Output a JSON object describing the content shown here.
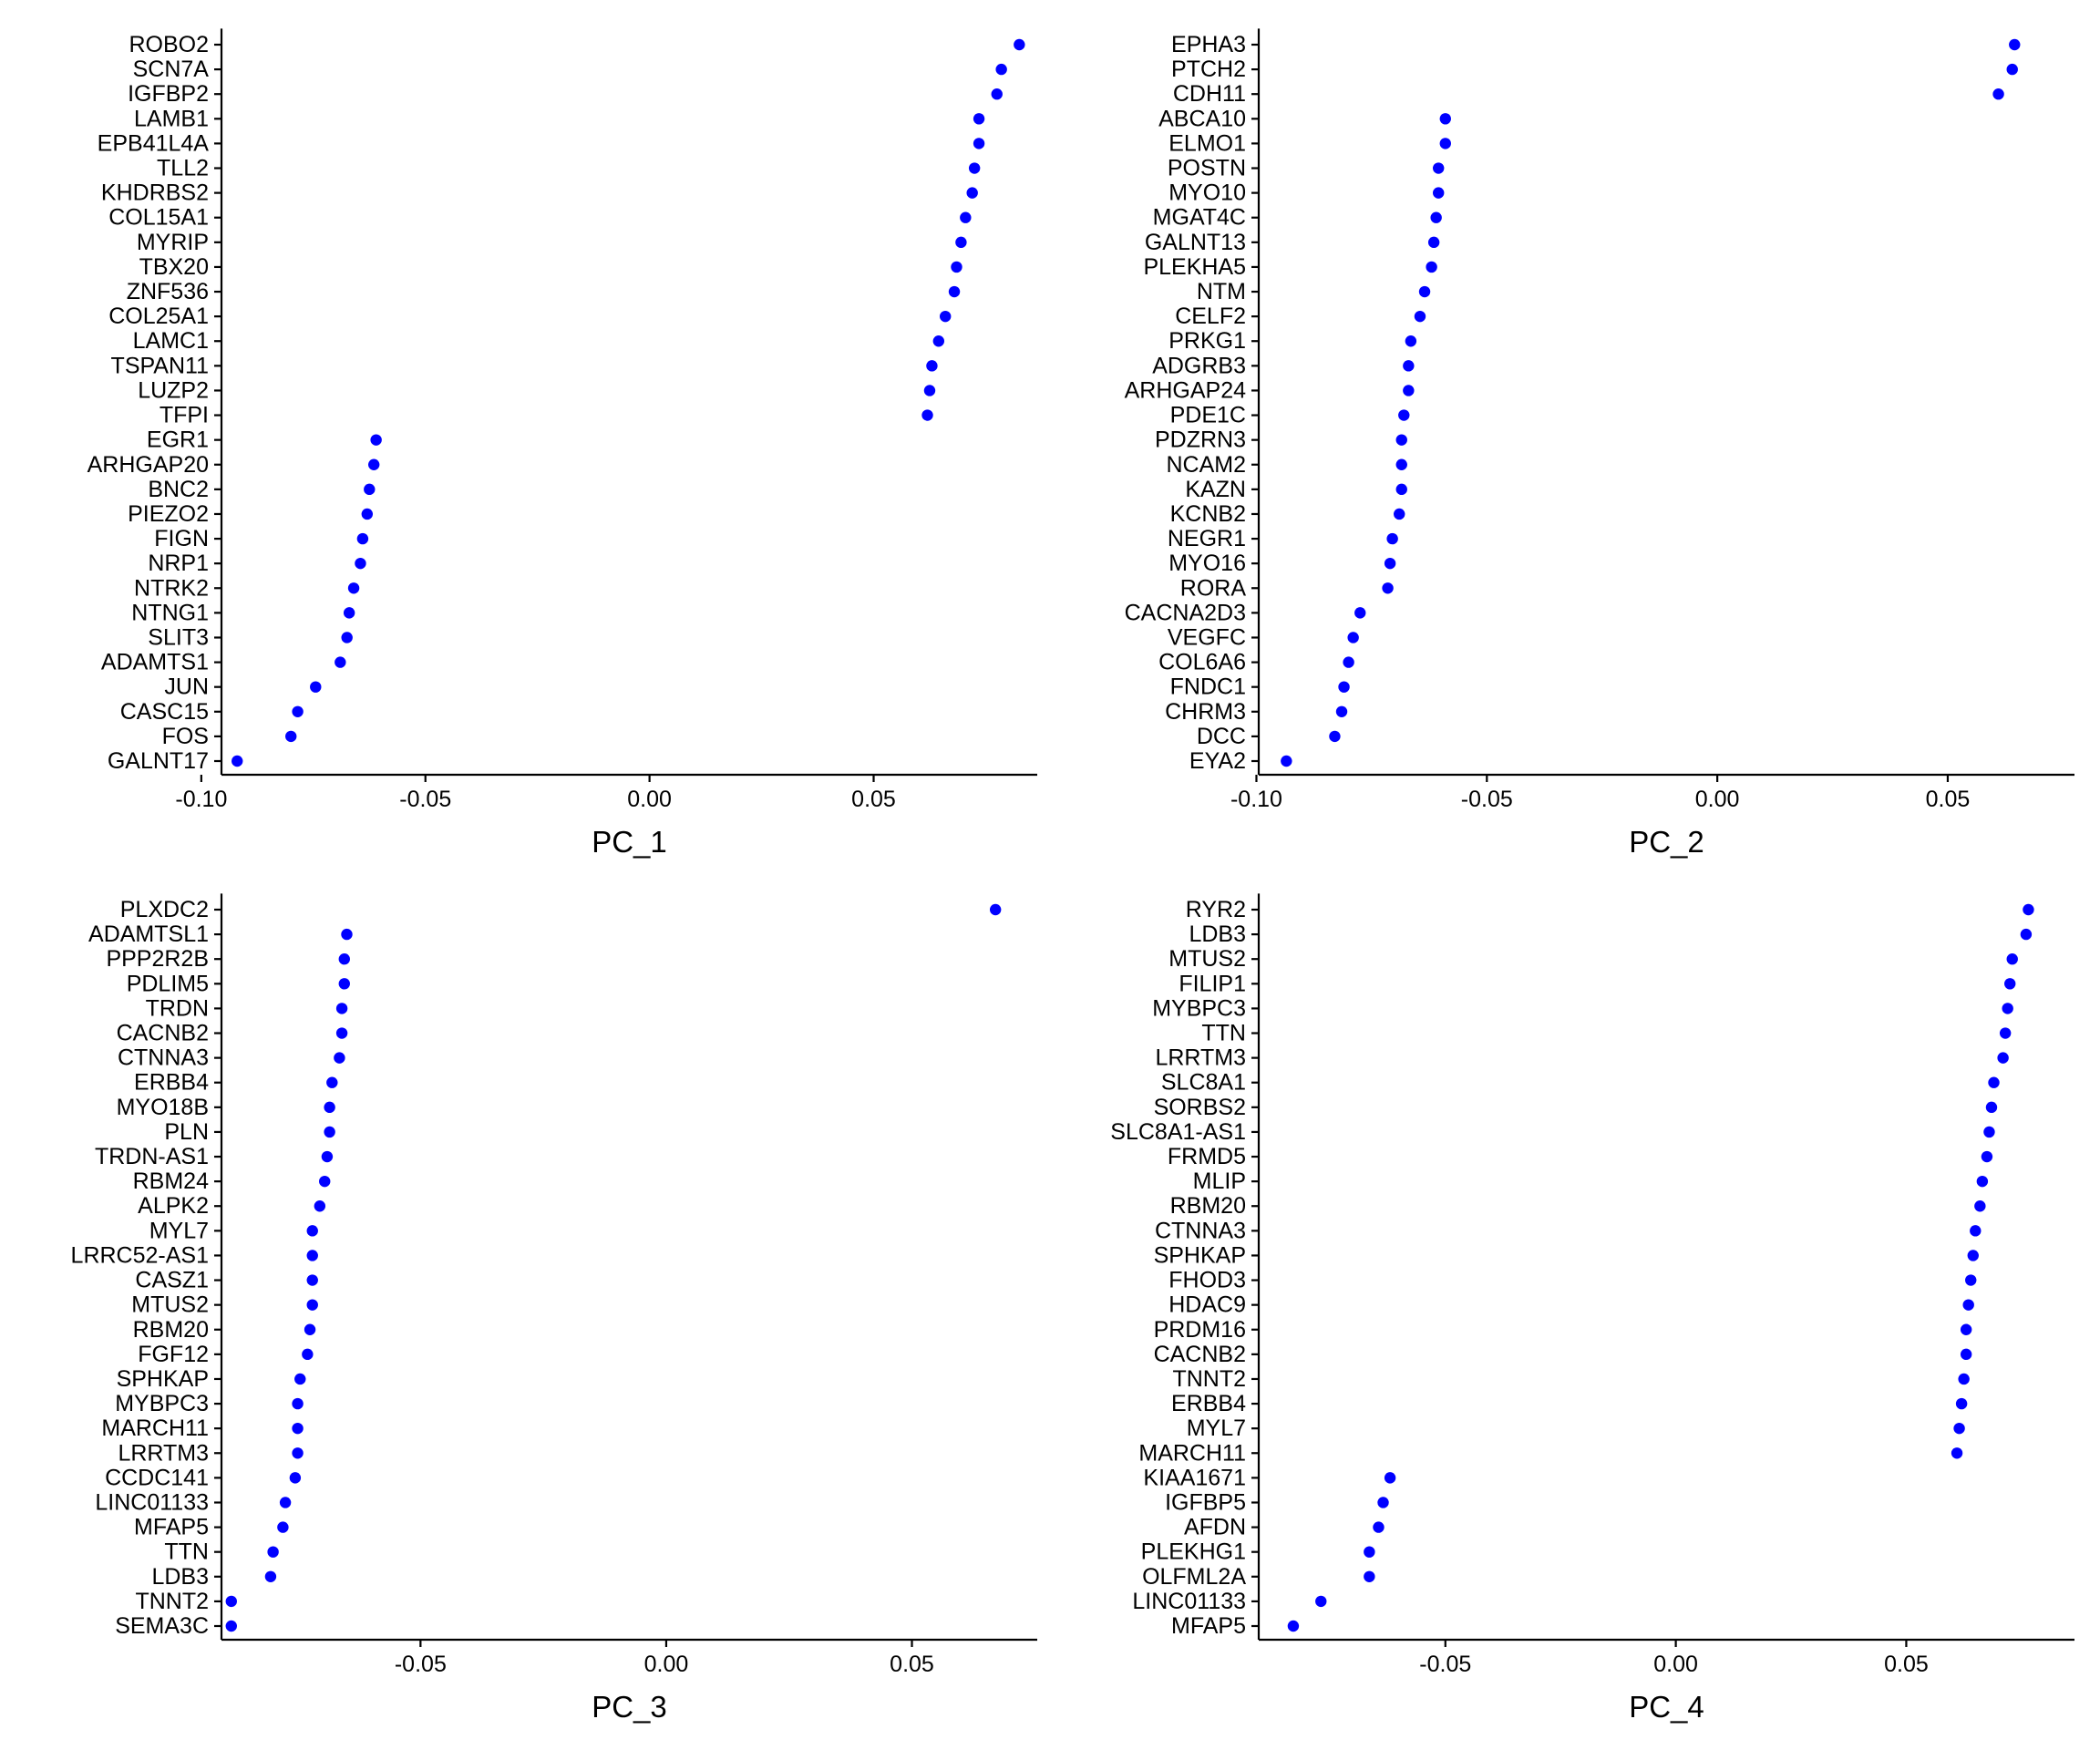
{
  "chart_data": [
    {
      "type": "scatter",
      "xlabel": "PC_1",
      "xlim": [
        -0.0955,
        0.0865
      ],
      "xticks": [
        -0.1,
        -0.05,
        0.0,
        0.05
      ],
      "xtick_labels": [
        "-0.10",
        "-0.05",
        "0.00",
        "0.05"
      ],
      "point_color": "#0000FF",
      "genes": [
        "ROBO2",
        "SCN7A",
        "IGFBP2",
        "LAMB1",
        "EPB41L4A",
        "TLL2",
        "KHDRBS2",
        "COL15A1",
        "MYRIP",
        "TBX20",
        "ZNF536",
        "COL25A1",
        "LAMC1",
        "TSPAN11",
        "LUZP2",
        "TFPI",
        "EGR1",
        "ARHGAP20",
        "BNC2",
        "PIEZO2",
        "FIGN",
        "NRP1",
        "NTRK2",
        "NTNG1",
        "SLIT3",
        "ADAMTS1",
        "JUN",
        "CASC15",
        "FOS",
        "GALNT17"
      ],
      "values": [
        0.0825,
        0.0785,
        0.0775,
        0.0735,
        0.0735,
        0.0725,
        0.072,
        0.0705,
        0.0695,
        0.0685,
        0.068,
        0.066,
        0.0645,
        0.063,
        0.0625,
        0.062,
        -0.061,
        -0.0615,
        -0.0625,
        -0.063,
        -0.064,
        -0.0645,
        -0.066,
        -0.067,
        -0.0675,
        -0.069,
        -0.0745,
        -0.0785,
        -0.08,
        -0.092
      ]
    },
    {
      "type": "scatter",
      "xlabel": "PC_2",
      "xlim": [
        -0.0995,
        0.0775
      ],
      "xticks": [
        -0.1,
        -0.05,
        0.0,
        0.05
      ],
      "xtick_labels": [
        "-0.10",
        "-0.05",
        "0.00",
        "0.05"
      ],
      "point_color": "#0000FF",
      "genes": [
        "EPHA3",
        "PTCH2",
        "CDH11",
        "ABCA10",
        "ELMO1",
        "POSTN",
        "MYO10",
        "MGAT4C",
        "GALNT13",
        "PLEKHA5",
        "NTM",
        "CELF2",
        "PRKG1",
        "ADGRB3",
        "ARHGAP24",
        "PDE1C",
        "PDZRN3",
        "NCAM2",
        "KAZN",
        "KCNB2",
        "NEGR1",
        "MYO16",
        "RORA",
        "CACNA2D3",
        "VEGFC",
        "COL6A6",
        "FNDC1",
        "CHRM3",
        "DCC",
        "EYA2"
      ],
      "values": [
        0.0645,
        0.064,
        0.061,
        -0.059,
        -0.059,
        -0.0605,
        -0.0605,
        -0.061,
        -0.0615,
        -0.062,
        -0.0635,
        -0.0645,
        -0.0665,
        -0.067,
        -0.067,
        -0.068,
        -0.0685,
        -0.0685,
        -0.0685,
        -0.069,
        -0.0705,
        -0.071,
        -0.0715,
        -0.0775,
        -0.079,
        -0.08,
        -0.081,
        -0.0815,
        -0.083,
        -0.0935
      ]
    },
    {
      "type": "scatter",
      "xlabel": "PC_3",
      "xlim": [
        -0.0905,
        0.0755
      ],
      "xticks": [
        -0.05,
        0.0,
        0.05
      ],
      "xtick_labels": [
        "-0.05",
        "0.00",
        "0.05"
      ],
      "point_color": "#0000FF",
      "genes": [
        "PLXDC2",
        "ADAMTSL1",
        "PPP2R2B",
        "PDLIM5",
        "TRDN",
        "CACNB2",
        "CTNNA3",
        "ERBB4",
        "MYO18B",
        "PLN",
        "TRDN-AS1",
        "RBM24",
        "ALPK2",
        "MYL7",
        "LRRC52-AS1",
        "CASZ1",
        "MTUS2",
        "RBM20",
        "FGF12",
        "SPHKAP",
        "MYBPC3",
        "MARCH11",
        "LRRTM3",
        "CCDC141",
        "LINC01133",
        "MFAP5",
        "TTN",
        "LDB3",
        "TNNT2",
        "SEMA3C"
      ],
      "values": [
        0.067,
        -0.065,
        -0.0655,
        -0.0655,
        -0.066,
        -0.066,
        -0.0665,
        -0.068,
        -0.0685,
        -0.0685,
        -0.069,
        -0.0695,
        -0.0705,
        -0.072,
        -0.072,
        -0.072,
        -0.072,
        -0.0725,
        -0.073,
        -0.0745,
        -0.075,
        -0.075,
        -0.075,
        -0.0755,
        -0.0775,
        -0.078,
        -0.08,
        -0.0805,
        -0.0885,
        -0.0885
      ]
    },
    {
      "type": "scatter",
      "xlabel": "PC_4",
      "xlim": [
        -0.0905,
        0.0865
      ],
      "xticks": [
        -0.05,
        0.0,
        0.05
      ],
      "xtick_labels": [
        "-0.05",
        "0.00",
        "0.05"
      ],
      "point_color": "#0000FF",
      "genes": [
        "RYR2",
        "LDB3",
        "MTUS2",
        "FILIP1",
        "MYBPC3",
        "TTN",
        "LRRTM3",
        "SLC8A1",
        "SORBS2",
        "SLC8A1-AS1",
        "FRMD5",
        "MLIP",
        "RBM20",
        "CTNNA3",
        "SPHKAP",
        "FHOD3",
        "HDAC9",
        "PRDM16",
        "CACNB2",
        "TNNT2",
        "ERBB4",
        "MYL7",
        "MARCH11",
        "KIAA1671",
        "IGFBP5",
        "AFDN",
        "PLEKHG1",
        "OLFML2A",
        "LINC01133",
        "MFAP5"
      ],
      "values": [
        0.0765,
        0.076,
        0.073,
        0.0725,
        0.072,
        0.0715,
        0.071,
        0.069,
        0.0685,
        0.068,
        0.0675,
        0.0665,
        0.066,
        0.065,
        0.0645,
        0.064,
        0.0635,
        0.063,
        0.063,
        0.0625,
        0.062,
        0.0615,
        0.061,
        -0.062,
        -0.0635,
        -0.0645,
        -0.0665,
        -0.0665,
        -0.077,
        -0.083
      ]
    }
  ]
}
